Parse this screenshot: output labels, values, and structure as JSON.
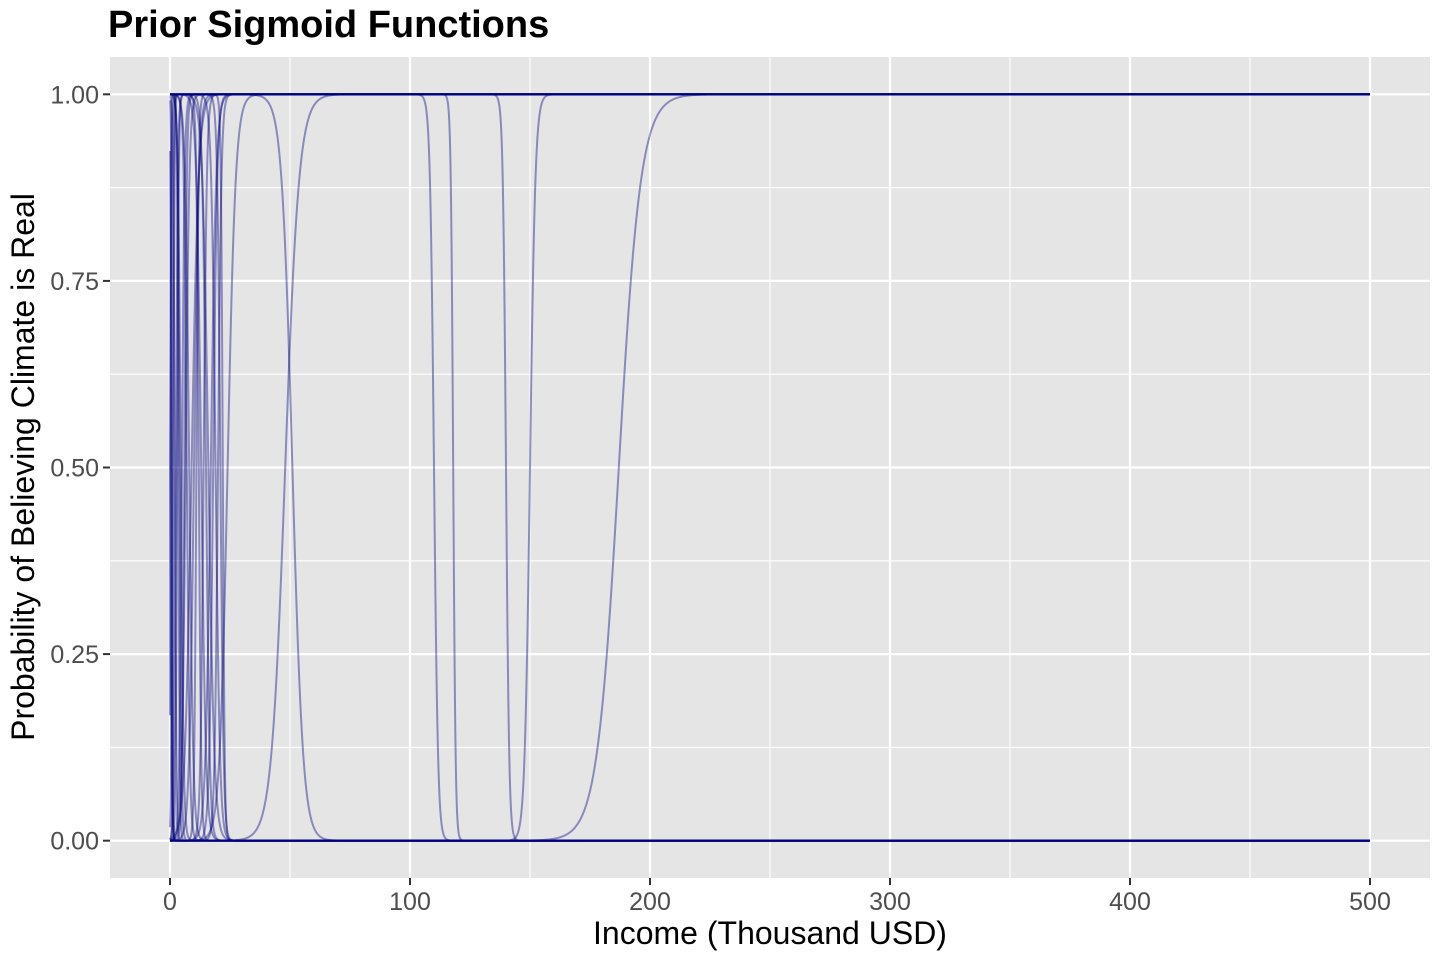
{
  "colors": {
    "panel_background": "#e5e5e5",
    "grid": "#ffffff",
    "series": "#000080",
    "tick_text": "#4d4d4d",
    "title_text": "#000000"
  },
  "chart_data": {
    "type": "line",
    "title": "Prior Sigmoid Functions",
    "xlabel": "Income (Thousand USD)",
    "ylabel": "Probability of Believing Climate is Real",
    "xlim": [
      -25,
      525
    ],
    "ylim": [
      -0.05,
      1.05
    ],
    "x_ticks": [
      0,
      100,
      200,
      300,
      400,
      500
    ],
    "x_tick_labels": [
      "0",
      "100",
      "200",
      "300",
      "400",
      "500"
    ],
    "y_ticks": [
      0,
      0.25,
      0.5,
      0.75,
      1.0
    ],
    "y_tick_labels": [
      "0.00",
      "0.25",
      "0.50",
      "0.75",
      "1.00"
    ],
    "grid": true,
    "legend": "none",
    "x_range": [
      0,
      500
    ],
    "series_opacity": 0.4,
    "series": [
      {
        "midpoint": 48,
        "steepness": 0.35
      },
      {
        "midpoint": 51,
        "steepness": -0.45
      },
      {
        "midpoint": 110,
        "steepness": -1.2
      },
      {
        "midpoint": 118,
        "steepness": -2.0
      },
      {
        "midpoint": 140,
        "steepness": -1.5
      },
      {
        "midpoint": 150,
        "steepness": 0.9
      },
      {
        "midpoint": 187,
        "steepness": 0.22
      },
      {
        "midpoint": 24,
        "steepness": 0.6
      },
      {
        "midpoint": 21,
        "steepness": -1.5
      },
      {
        "midpoint": 18,
        "steepness": 1.2
      },
      {
        "midpoint": 16,
        "steepness": -0.8
      },
      {
        "midpoint": 14,
        "steepness": 1.5
      },
      {
        "midpoint": 12,
        "steepness": -2.0
      },
      {
        "midpoint": 10,
        "steepness": 1.0
      },
      {
        "midpoint": 8,
        "steepness": -1.2
      },
      {
        "midpoint": 6,
        "steepness": 2.0
      },
      {
        "midpoint": 4,
        "steepness": -2.5
      },
      {
        "midpoint": 3,
        "steepness": 3.0
      },
      {
        "midpoint": 2,
        "steepness": -3.0
      },
      {
        "midpoint": 1,
        "steepness": 4.0
      },
      {
        "midpoint": 0.5,
        "steepness": -5.0
      },
      {
        "midpoint": 9,
        "steepness": 0.7
      },
      {
        "midpoint": 13,
        "steepness": -1.0
      },
      {
        "midpoint": 20,
        "steepness": 1.4
      },
      {
        "midpoint": 22,
        "steepness": -2.5
      },
      {
        "midpoint": 5,
        "steepness": 1.8
      },
      {
        "midpoint": 7,
        "steepness": -1.6
      },
      {
        "midpoint": 11,
        "steepness": 2.2
      },
      {
        "midpoint": 15,
        "steepness": -1.3
      },
      {
        "midpoint": 2.5,
        "steepness": 2.5
      },
      {
        "midpoint": 0.2,
        "steepness": 8.0
      },
      {
        "midpoint": 0.8,
        "steepness": -6.0
      },
      {
        "midpoint": 1.5,
        "steepness": 5.0
      },
      {
        "midpoint": 3.5,
        "steepness": -3.5
      },
      {
        "midpoint": 17,
        "steepness": 0.9
      },
      {
        "midpoint": 19,
        "steepness": -1.1
      },
      {
        "midpoint": 6.5,
        "steepness": 1.3
      },
      {
        "midpoint": 4.5,
        "steepness": -1.7
      },
      {
        "midpoint": 0,
        "steepness": 3.0
      },
      {
        "midpoint": 0,
        "steepness": -3.0
      }
    ]
  }
}
